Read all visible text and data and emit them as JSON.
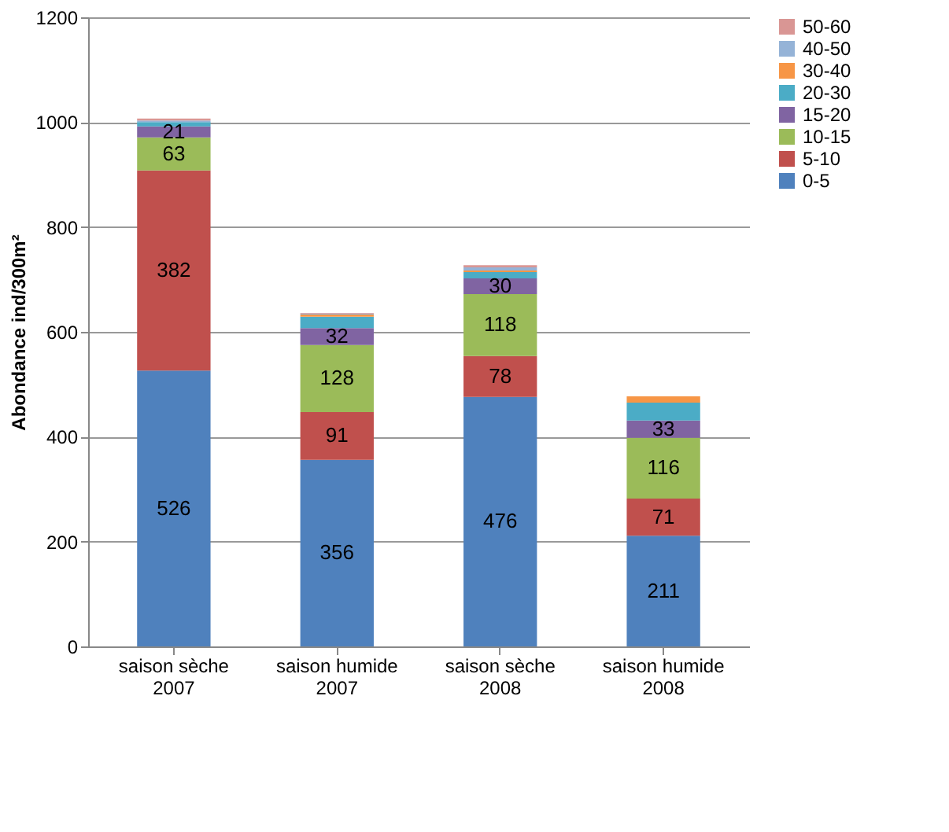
{
  "chart_data": {
    "type": "bar",
    "stacked": true,
    "ylabel": "Abondance ind/300m²",
    "categories": [
      "saison sèche 2007",
      "saison humide 2007",
      "saison sèche 2008",
      "saison humide 2008"
    ],
    "ylim": [
      0,
      1200
    ],
    "yticks": [
      0,
      200,
      400,
      600,
      800,
      1000,
      1200
    ],
    "grid": "y",
    "legend": "right",
    "series": [
      {
        "name": "0-5",
        "color": "#4f81bd",
        "values": [
          526,
          356,
          476,
          211
        ],
        "value_labels": [
          "526",
          "356",
          "476",
          "211"
        ]
      },
      {
        "name": "5-10",
        "color": "#c0504d",
        "values": [
          382,
          91,
          78,
          71
        ],
        "value_labels": [
          "382",
          "91",
          "78",
          "71"
        ]
      },
      {
        "name": "10-15",
        "color": "#9bbb59",
        "values": [
          63,
          128,
          118,
          116
        ],
        "value_labels": [
          "63",
          "128",
          "118",
          "116"
        ]
      },
      {
        "name": "15-20",
        "color": "#8064a2",
        "values": [
          21,
          32,
          30,
          33
        ],
        "value_labels": [
          "21",
          "32",
          "30",
          "33"
        ]
      },
      {
        "name": "20-30",
        "color": "#4bacc6",
        "values": [
          8,
          22,
          12,
          34
        ],
        "value_labels": [
          null,
          null,
          null,
          null
        ]
      },
      {
        "name": "30-40",
        "color": "#f79646",
        "values": [
          0,
          4,
          3,
          12
        ],
        "value_labels": [
          null,
          null,
          null,
          null
        ]
      },
      {
        "name": "40-50",
        "color": "#95b3d7",
        "values": [
          3,
          2,
          6,
          0
        ],
        "value_labels": [
          null,
          null,
          null,
          null
        ]
      },
      {
        "name": "50-60",
        "color": "#d99694",
        "values": [
          4,
          1,
          4,
          0
        ],
        "value_labels": [
          null,
          null,
          null,
          null
        ]
      }
    ]
  }
}
